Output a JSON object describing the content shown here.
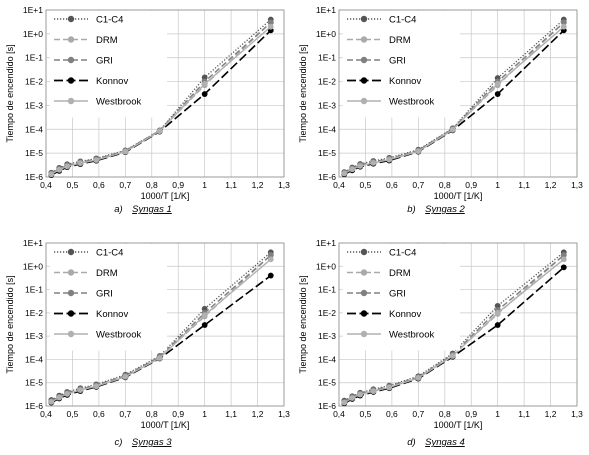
{
  "chart_data": [
    {
      "type": "line",
      "xlabel": "1000/T [1/K]",
      "ylabel": "Tiempo de encendido [s]",
      "yscale": "log",
      "xlim": [
        0.4,
        1.3
      ],
      "ylim": [
        1e-06,
        10
      ],
      "xticks": [
        "0,4",
        "0,5",
        "0,6",
        "0,7",
        "0,8",
        "0,9",
        "1",
        "1,1",
        "1,2",
        "1,3"
      ],
      "yticks": [
        "1E-6",
        "1E-5",
        "1E-4",
        "1E-3",
        "1E-2",
        "1E-1",
        "1E+0",
        "1E+1"
      ],
      "grid": true,
      "legend_position": "top-left",
      "caption": {
        "letter": "a)",
        "name": "Syngas 1"
      },
      "x": [
        0.42,
        0.45,
        0.48,
        0.53,
        0.59,
        0.7,
        0.83,
        1.0,
        1.25
      ],
      "series": [
        {
          "name": "C1-C4",
          "color": "#555555",
          "dash": "dotted",
          "values": [
            1.5e-06,
            2.4e-06,
            3.4e-06,
            4.5e-06,
            6e-06,
            1.3e-05,
            9e-05,
            0.015,
            4.0
          ]
        },
        {
          "name": "DRM",
          "color": "#aaaaaa",
          "dash": "dashed",
          "values": [
            1.3e-06,
            2e-06,
            2.9e-06,
            3.9e-06,
            5.3e-06,
            1.2e-05,
            8.5e-05,
            0.007,
            3.0
          ]
        },
        {
          "name": "GRI",
          "color": "#808080",
          "dash": "dashed",
          "values": [
            1.4e-06,
            2.2e-06,
            3.1e-06,
            4.2e-06,
            5.6e-06,
            1.25e-05,
            8.8e-05,
            0.01,
            3.0
          ]
        },
        {
          "name": "Konnov",
          "color": "#000000",
          "dash": "longdash",
          "values": [
            1.2e-06,
            1.8e-06,
            2.6e-06,
            3.5e-06,
            4.8e-06,
            1.1e-05,
            8e-05,
            0.003,
            1.4
          ]
        },
        {
          "name": "Westbrook",
          "color": "#b0b0b0",
          "dash": "solid",
          "values": [
            1.3e-06,
            2e-06,
            2.8e-06,
            3.8e-06,
            5.1e-06,
            1.15e-05,
            8.3e-05,
            0.008,
            2.0
          ]
        }
      ]
    },
    {
      "type": "line",
      "xlabel": "1000/T [1/K]",
      "ylabel": "Tiempo de encendido [s]",
      "yscale": "log",
      "xlim": [
        0.4,
        1.3
      ],
      "ylim": [
        1e-06,
        10
      ],
      "xticks": [
        "0,4",
        "0,5",
        "0,6",
        "0,7",
        "0,8",
        "0,9",
        "1",
        "1,1",
        "1,2",
        "1,3"
      ],
      "yticks": [
        "1E-6",
        "1E-5",
        "1E-4",
        "1E-3",
        "1E-2",
        "1E-1",
        "1E+0",
        "1E+1"
      ],
      "grid": true,
      "legend_position": "top-left",
      "caption": {
        "letter": "b)",
        "name": "Syngas 2"
      },
      "x": [
        0.42,
        0.45,
        0.48,
        0.53,
        0.59,
        0.7,
        0.83,
        1.0,
        1.25
      ],
      "series": [
        {
          "name": "C1-C4",
          "color": "#555555",
          "dash": "dotted",
          "values": [
            1.6e-06,
            2.5e-06,
            3.5e-06,
            4.7e-06,
            6.3e-06,
            1.4e-05,
            0.00011,
            0.014,
            4.0
          ]
        },
        {
          "name": "DRM",
          "color": "#aaaaaa",
          "dash": "dashed",
          "values": [
            1.4e-06,
            2.1e-06,
            3e-06,
            4e-06,
            5.5e-06,
            1.25e-05,
            0.0001,
            0.007,
            3.0
          ]
        },
        {
          "name": "GRI",
          "color": "#808080",
          "dash": "dashed",
          "values": [
            1.5e-06,
            2.3e-06,
            3.2e-06,
            4.3e-06,
            5.8e-06,
            1.3e-05,
            0.000105,
            0.01,
            3.0
          ]
        },
        {
          "name": "Konnov",
          "color": "#000000",
          "dash": "longdash",
          "values": [
            1.3e-06,
            1.9e-06,
            2.7e-06,
            3.6e-06,
            4.9e-06,
            1.15e-05,
            9e-05,
            0.003,
            1.4
          ]
        },
        {
          "name": "Westbrook",
          "color": "#b0b0b0",
          "dash": "solid",
          "values": [
            1.4e-06,
            2.1e-06,
            2.9e-06,
            3.9e-06,
            5.3e-06,
            1.2e-05,
            9.5e-05,
            0.008,
            2.0
          ]
        }
      ]
    },
    {
      "type": "line",
      "xlabel": "1000/T [1/K]",
      "ylabel": "Tiempo de encendido [s]",
      "yscale": "log",
      "xlim": [
        0.4,
        1.3
      ],
      "ylim": [
        1e-06,
        10
      ],
      "xticks": [
        "0,4",
        "0,5",
        "0,6",
        "0,7",
        "0,8",
        "0,9",
        "1",
        "1,1",
        "1,2",
        "1,3"
      ],
      "yticks": [
        "1E-6",
        "1E-5",
        "1E-4",
        "1E-3",
        "1E-2",
        "1E-1",
        "1E+0",
        "1E+1"
      ],
      "grid": true,
      "legend_position": "top-left",
      "caption": {
        "letter": "c)",
        "name": "Syngas 3"
      },
      "x": [
        0.42,
        0.45,
        0.48,
        0.53,
        0.59,
        0.7,
        0.83,
        1.0,
        1.25
      ],
      "series": [
        {
          "name": "C1-C4",
          "color": "#555555",
          "dash": "dotted",
          "values": [
            1.8e-06,
            2.8e-06,
            4e-06,
            5.8e-06,
            8.5e-06,
            2.2e-05,
            0.00014,
            0.015,
            4.0
          ]
        },
        {
          "name": "DRM",
          "color": "#aaaaaa",
          "dash": "dashed",
          "values": [
            1.5e-06,
            2.3e-06,
            3.3e-06,
            4.8e-06,
            7.2e-06,
            1.9e-05,
            0.00012,
            0.007,
            3.0
          ]
        },
        {
          "name": "GRI",
          "color": "#808080",
          "dash": "dashed",
          "values": [
            1.6e-06,
            2.5e-06,
            3.6e-06,
            5.2e-06,
            7.8e-06,
            2e-05,
            0.00013,
            0.01,
            3.0
          ]
        },
        {
          "name": "Konnov",
          "color": "#000000",
          "dash": "longdash",
          "values": [
            1.4e-06,
            2.1e-06,
            3e-06,
            4.4e-06,
            6.6e-06,
            1.7e-05,
            0.00011,
            0.003,
            0.4
          ]
        },
        {
          "name": "Westbrook",
          "color": "#b0b0b0",
          "dash": "solid",
          "values": [
            1.5e-06,
            2.3e-06,
            3.3e-06,
            4.8e-06,
            7e-06,
            1.8e-05,
            0.000115,
            0.008,
            2.0
          ]
        }
      ]
    },
    {
      "type": "line",
      "xlabel": "1000/T [1/K]",
      "ylabel": "Tiempo de encendido [s]",
      "yscale": "log",
      "xlim": [
        0.4,
        1.3
      ],
      "ylim": [
        1e-06,
        10
      ],
      "xticks": [
        "0,4",
        "0,5",
        "0,6",
        "0,7",
        "0,8",
        "0,9",
        "1",
        "1,1",
        "1,2",
        "1,3"
      ],
      "yticks": [
        "1E-6",
        "1E-5",
        "1E-4",
        "1E-3",
        "1E-2",
        "1E-1",
        "1E+0",
        "1E+1"
      ],
      "grid": true,
      "legend_position": "top-left",
      "caption": {
        "letter": "d)",
        "name": "Syngas 4"
      },
      "x": [
        0.42,
        0.45,
        0.48,
        0.53,
        0.59,
        0.7,
        0.83,
        1.0,
        1.25
      ],
      "series": [
        {
          "name": "C1-C4",
          "color": "#555555",
          "dash": "dotted",
          "values": [
            1.7e-06,
            2.6e-06,
            3.7e-06,
            5.2e-06,
            7.5e-06,
            1.9e-05,
            0.00018,
            0.02,
            4.0
          ]
        },
        {
          "name": "DRM",
          "color": "#aaaaaa",
          "dash": "dashed",
          "values": [
            1.4e-06,
            2.2e-06,
            3.1e-06,
            4.4e-06,
            6.4e-06,
            1.6e-05,
            0.00015,
            0.009,
            3.0
          ]
        },
        {
          "name": "GRI",
          "color": "#808080",
          "dash": "dashed",
          "values": [
            1.5e-06,
            2.4e-06,
            3.4e-06,
            4.8e-06,
            7e-06,
            1.75e-05,
            0.00016,
            0.013,
            3.0
          ]
        },
        {
          "name": "Konnov",
          "color": "#000000",
          "dash": "longdash",
          "values": [
            1.3e-06,
            2e-06,
            2.8e-06,
            4e-06,
            5.8e-06,
            1.5e-05,
            0.00013,
            0.003,
            0.9
          ]
        },
        {
          "name": "Westbrook",
          "color": "#b0b0b0",
          "dash": "solid",
          "values": [
            1.4e-06,
            2.2e-06,
            3.1e-06,
            4.3e-06,
            6.2e-06,
            1.6e-05,
            0.00014,
            0.01,
            2.0
          ]
        }
      ]
    }
  ]
}
